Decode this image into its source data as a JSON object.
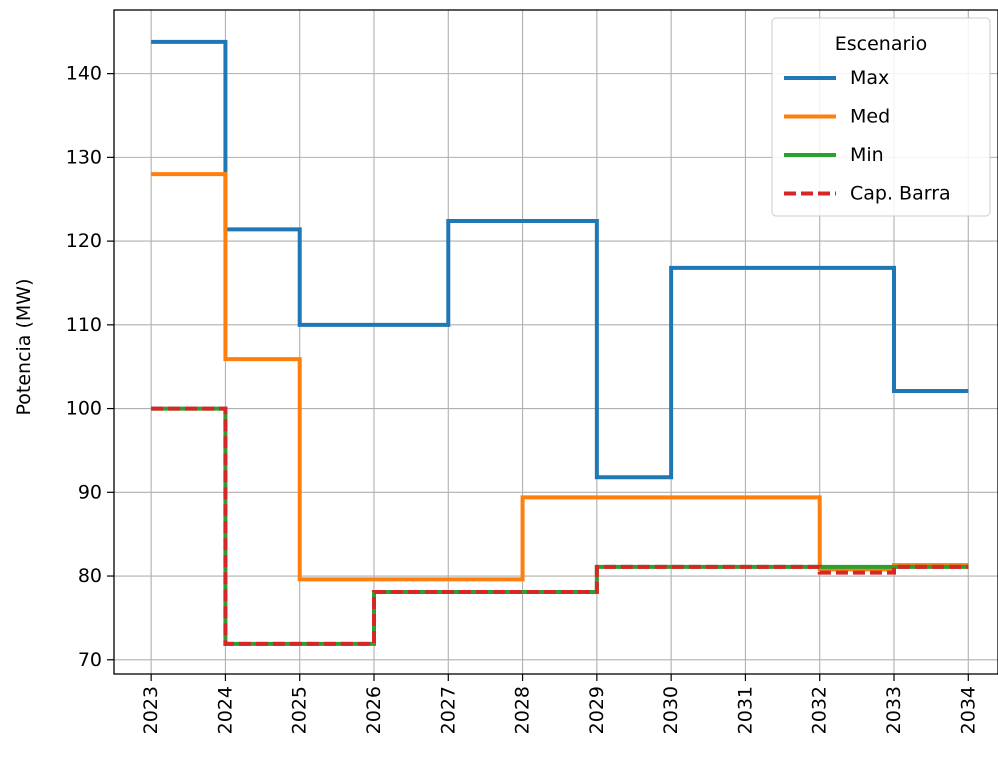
{
  "chart_data": {
    "type": "line",
    "step": "post",
    "title": "",
    "xlabel": "",
    "ylabel": "Potencia (MW)",
    "x": [
      2023,
      2024,
      2025,
      2026,
      2027,
      2028,
      2029,
      2030,
      2031,
      2032,
      2033,
      2034
    ],
    "x_tick_labels": [
      "2023",
      "2024",
      "2025",
      "2026",
      "2027",
      "2028",
      "2029",
      "2030",
      "2031",
      "2032",
      "2033",
      "2034"
    ],
    "y_ticks": [
      70,
      80,
      90,
      100,
      110,
      120,
      130,
      140
    ],
    "xlim": [
      2022.5,
      2034.4
    ],
    "ylim": [
      68.3,
      147.6
    ],
    "grid": true,
    "legend": {
      "title": "Escenario",
      "position": "top-right"
    },
    "series": [
      {
        "name": "Max",
        "color": "#1f77b4",
        "dash": "solid",
        "values": [
          143.8,
          121.4,
          110.0,
          110.0,
          122.4,
          122.4,
          91.8,
          116.8,
          116.8,
          116.8,
          102.1,
          102.1
        ]
      },
      {
        "name": "Med",
        "color": "#ff7f0e",
        "dash": "solid",
        "values": [
          128.0,
          105.9,
          79.6,
          79.6,
          79.6,
          89.4,
          89.4,
          89.4,
          89.4,
          80.8,
          81.3,
          81.3
        ]
      },
      {
        "name": "Min",
        "color": "#2ca02c",
        "dash": "solid",
        "values": [
          100.0,
          71.9,
          71.9,
          78.1,
          78.1,
          78.1,
          81.1,
          81.1,
          81.1,
          81.1,
          81.1,
          81.1
        ]
      },
      {
        "name": "Cap. Barra",
        "color": "#d62728",
        "dash": "dashed",
        "values": [
          100.0,
          71.9,
          71.9,
          78.1,
          78.1,
          78.1,
          81.1,
          81.1,
          81.1,
          80.4,
          81.1,
          81.1
        ]
      }
    ]
  }
}
